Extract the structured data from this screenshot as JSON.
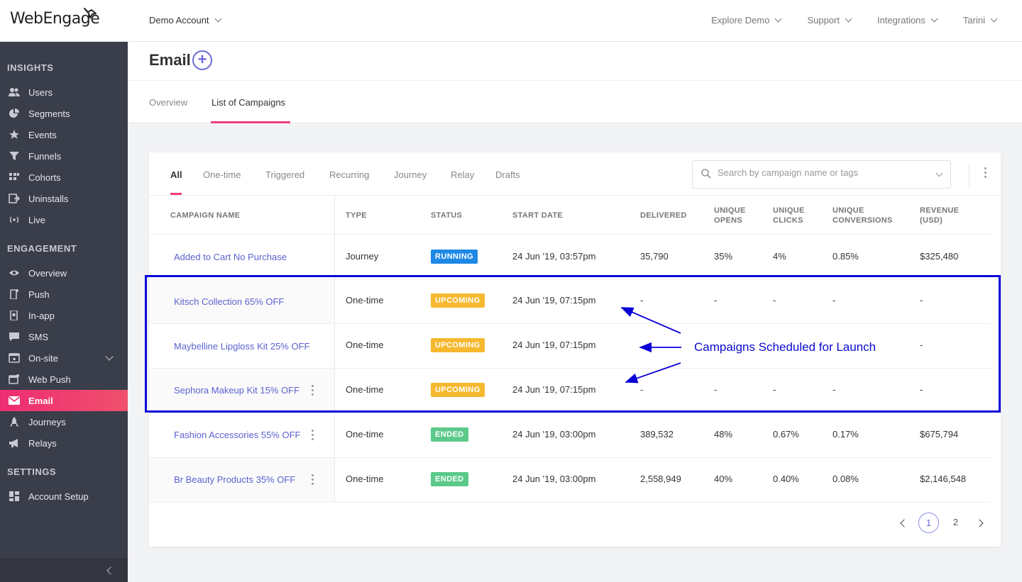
{
  "brand": {
    "logo_text": "WebEngage",
    "accent": "#ee3e7e",
    "link": "#5b62cf"
  },
  "topbar": {
    "account": "Demo Account",
    "nav": [
      "Explore Demo",
      "Support",
      "Integrations",
      "Tarini"
    ]
  },
  "sidebar": {
    "sections": {
      "insights": "INSIGHTS",
      "engagement": "ENGAGEMENT",
      "settings": "SETTINGS"
    },
    "insights_items": [
      {
        "label": "Users",
        "icon": "users-icon"
      },
      {
        "label": "Segments",
        "icon": "pie-chart-icon"
      },
      {
        "label": "Events",
        "icon": "star-icon"
      },
      {
        "label": "Funnels",
        "icon": "funnel-icon"
      },
      {
        "label": "Cohorts",
        "icon": "grid-icon"
      },
      {
        "label": "Uninstalls",
        "icon": "uninstall-icon"
      },
      {
        "label": "Live",
        "icon": "broadcast-icon"
      }
    ],
    "engagement_items": [
      {
        "label": "Overview",
        "icon": "eye-icon"
      },
      {
        "label": "Push",
        "icon": "mobile-push-icon"
      },
      {
        "label": "In-app",
        "icon": "mobile-inapp-icon"
      },
      {
        "label": "SMS",
        "icon": "chat-icon"
      },
      {
        "label": "On-site",
        "icon": "browser-icon"
      },
      {
        "label": "Web Push",
        "icon": "web-push-icon"
      },
      {
        "label": "Email",
        "icon": "mail-icon"
      },
      {
        "label": "Journeys",
        "icon": "journey-icon"
      },
      {
        "label": "Relays",
        "icon": "megaphone-icon"
      }
    ],
    "settings_items": [
      {
        "label": "Account Setup",
        "icon": "dashboard-icon"
      }
    ]
  },
  "page": {
    "title": "Email",
    "tabs": [
      "Overview",
      "List of Campaigns"
    ]
  },
  "campaigns": {
    "filters": [
      "All",
      "One-time",
      "Triggered",
      "Recurring",
      "Journey",
      "Relay",
      "Drafts"
    ],
    "search_placeholder": "Search by campaign name or tags",
    "columns": {
      "name": "CAMPAIGN NAME",
      "type": "TYPE",
      "status": "STATUS",
      "start": "START DATE",
      "delivered": "DELIVERED",
      "opens_1": "UNIQUE",
      "opens_2": "OPENS",
      "clicks_1": "UNIQUE",
      "clicks_2": "CLICKS",
      "conv_1": "UNIQUE",
      "conv_2": "CONVERSIONS",
      "rev_1": "REVENUE",
      "rev_2": "(USD)"
    },
    "rows": [
      {
        "name": "Added to Cart No Purchase",
        "type": "Journey",
        "status": "RUNNING",
        "start": "24 Jun '19, 03:57pm",
        "delivered": "35,790",
        "opens": "35%",
        "clicks": "4%",
        "conversions": "0.85%",
        "revenue": "$325,480"
      },
      {
        "name": "Kitsch Collection 65% OFF",
        "type": "One-time",
        "status": "UPCOMING",
        "start": "24 Jun '19, 07:15pm",
        "delivered": "-",
        "opens": "-",
        "clicks": "-",
        "conversions": "-",
        "revenue": "-"
      },
      {
        "name": "Maybelline Lipgloss Kit 25% OFF",
        "type": "One-time",
        "status": "UPCOMING",
        "start": "24 Jun '19, 07:15pm",
        "delivered": "",
        "opens": "",
        "clicks": "",
        "conversions": "",
        "revenue": "-"
      },
      {
        "name": "Sephora Makeup Kit 15% OFF",
        "type": "One-time",
        "status": "UPCOMING",
        "start": "24 Jun '19, 07:15pm",
        "delivered": "-",
        "opens": "-",
        "clicks": "-",
        "conversions": "-",
        "revenue": "-"
      },
      {
        "name": "Fashion Accessories 55% OFF",
        "type": "One-time",
        "status": "ENDED",
        "start": "24 Jun '19, 03:00pm",
        "delivered": "389,532",
        "opens": "48%",
        "clicks": "0.67%",
        "conversions": "0.17%",
        "revenue": "$675,794"
      },
      {
        "name": "Br Beauty Products 35% OFF",
        "type": "One-time",
        "status": "ENDED",
        "start": "24 Jun '19, 03:00pm",
        "delivered": "2,558,949",
        "opens": "40%",
        "clicks": "0.40%",
        "conversions": "0.08%",
        "revenue": "$2,146,548"
      }
    ],
    "pagination": {
      "pages": [
        "1",
        "2"
      ],
      "current": "1"
    }
  },
  "annotation": {
    "text": "Campaigns Scheduled for Launch",
    "color": "#0a00d6"
  },
  "status_colors": {
    "RUNNING": "#1e88e5",
    "UPCOMING": "#f5b82e",
    "ENDED": "#5bc98a"
  }
}
